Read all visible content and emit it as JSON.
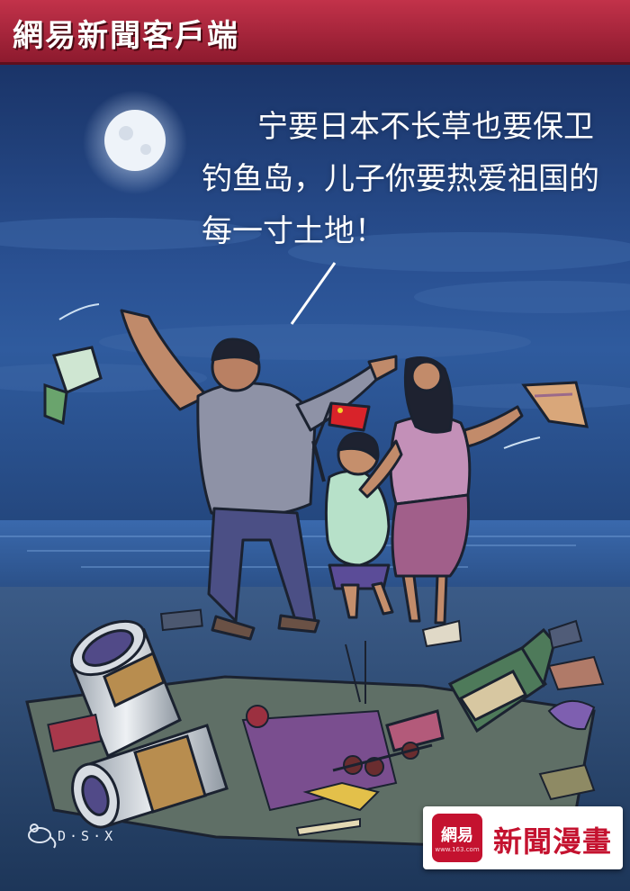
{
  "header": {
    "title": "網易新聞客戶端"
  },
  "speech": {
    "line1": "宁要日本不长草也要保卫",
    "line2": "钓鱼岛，儿子你要热爱祖国的",
    "line3": "每一寸土地！"
  },
  "signature": "D·S·X",
  "badge": {
    "logo_text": "網易",
    "logo_url": "www.163.com",
    "label": "新聞漫畫"
  },
  "colors": {
    "header_red": "#c2324a",
    "sky": "#1d3b73",
    "brand_red": "#c4122f"
  }
}
